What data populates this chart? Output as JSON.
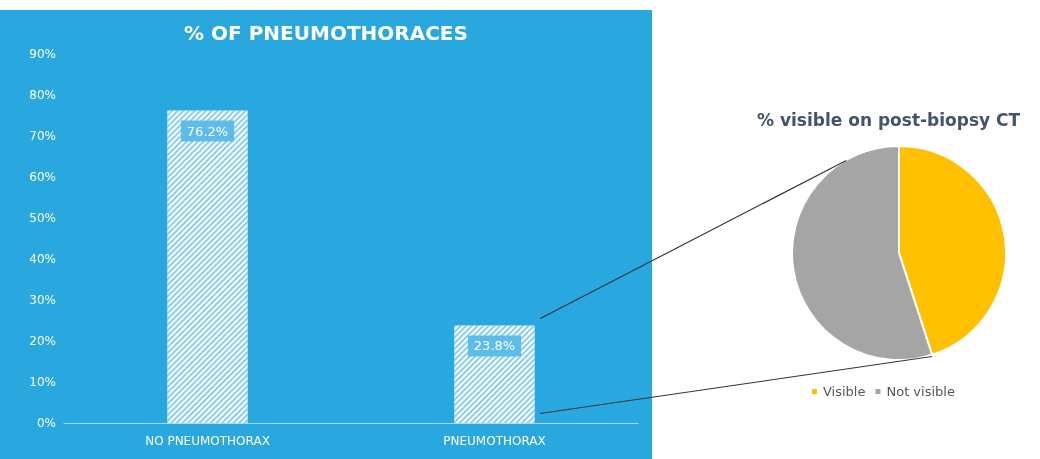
{
  "chart_data": [
    {
      "type": "bar",
      "title": "% OF PNEUMOTHORACES",
      "categories": [
        "NO PNEUMOTHORAX",
        "PNEUMOTHORAX"
      ],
      "values": [
        76.2,
        23.8
      ],
      "value_labels": [
        "76.2%",
        "23.8%"
      ],
      "color": "#ffffff",
      "ylim": [
        0,
        90
      ],
      "yticks": [
        {
          "value": 0,
          "label": "0%"
        },
        {
          "value": 10,
          "label": "10%"
        },
        {
          "value": 20,
          "label": "20%"
        },
        {
          "value": 30,
          "label": "30%"
        },
        {
          "value": 40,
          "label": "40%"
        },
        {
          "value": 50,
          "label": "50%"
        },
        {
          "value": 60,
          "label": "60%"
        },
        {
          "value": 70,
          "label": "70%"
        },
        {
          "value": 80,
          "label": "80%"
        },
        {
          "value": 90,
          "label": "90%"
        }
      ],
      "legend": false
    },
    {
      "type": "pie",
      "title": "% visible on post-biopsy CT",
      "categories": [
        "Visible",
        "Not visible"
      ],
      "values": [
        45,
        55
      ],
      "colors": [
        "#ffc000",
        "#a5a5a5"
      ],
      "legend": "bottom"
    }
  ]
}
